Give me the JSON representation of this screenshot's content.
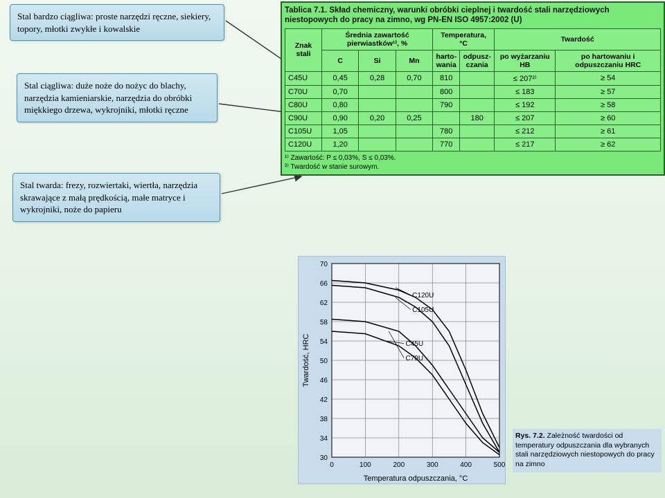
{
  "callouts": {
    "c1": "Stal bardzo ciągliwa: proste narzędzi ręczne, siekiery, topory, młotki zwykłe i kowalskie",
    "c2": "Stal ciągliwa: duże noże do nożyc do blachy, narzędzia kamieniarskie, narzędzia do obróbki miękkiego drzewa, wykrojniki, młotki ręczne",
    "c3": "Stal twarda: frezy, rozwiertaki, wiertła, narzędzia skrawające z małą prędkością, małe matryce i wykrojniki, noże do papieru"
  },
  "table": {
    "caption": "Tablica 7.1. Skład chemiczny, warunki obróbki cieplnej i twardość stali narzędziowych niestopowych do pracy na zimno, wg PN-EN ISO 4957:2002 (U)",
    "headers": {
      "znak": "Znak stali",
      "chem": "Średnia zawartość pierwiastków¹⁾, %",
      "c": "C",
      "si": "Si",
      "mn": "Mn",
      "temp": "Temperatura, °C",
      "hart": "harto-\nwania",
      "odp": "odpusz-\nczania",
      "tw": "Twardość",
      "hb": "po wyżarzaniu HB",
      "hrc": "po hartowaniu i odpuszczaniu HRC"
    },
    "rows": [
      {
        "znak": "C45U",
        "c": "0,45",
        "si": "0,28",
        "mn": "0,70",
        "hart": "810",
        "odp": "",
        "hb": "≤ 207²⁾",
        "hrc": "≥ 54"
      },
      {
        "znak": "C70U",
        "c": "0,70",
        "si": "",
        "mn": "",
        "hart": "800",
        "odp": "",
        "hb": "≤ 183",
        "hrc": "≥ 57"
      },
      {
        "znak": "C80U",
        "c": "0,80",
        "si": "",
        "mn": "",
        "hart": "790",
        "odp": "",
        "hb": "≤ 192",
        "hrc": "≥ 58"
      },
      {
        "znak": "C90U",
        "c": "0,90",
        "si": "0,20",
        "mn": "0,25",
        "hart": "",
        "odp": "180",
        "hb": "≤ 207",
        "hrc": "≥ 60"
      },
      {
        "znak": "C105U",
        "c": "1,05",
        "si": "",
        "mn": "",
        "hart": "780",
        "odp": "",
        "hb": "≤ 212",
        "hrc": "≥ 61"
      },
      {
        "znak": "C120U",
        "c": "1,20",
        "si": "",
        "mn": "",
        "hart": "770",
        "odp": "",
        "hb": "≤ 217",
        "hrc": "≥ 62"
      }
    ],
    "footnotes": {
      "f1": "¹⁾ Zawartość: P ≤ 0,03%, S ≤ 0,03%.",
      "f2": "²⁾ Twardość w stanie surowym."
    }
  },
  "chart": {
    "ylabel": "Twardość, HRC",
    "xlabel": "Temperatura odpuszczania, °C",
    "xlim": [
      0,
      500
    ],
    "xticks": [
      0,
      100,
      200,
      300,
      400,
      500
    ],
    "ylim": [
      30,
      70
    ],
    "yticks": [
      30,
      34,
      38,
      42,
      46,
      50,
      54,
      58,
      62,
      66,
      70
    ],
    "grid_color": "#555",
    "bg": "#f0f4f8",
    "label_fontsize": 11,
    "tick_fontsize": 10,
    "line_color": "#000",
    "line_width": 1.5,
    "series": {
      "C120U": [
        [
          0,
          66.5
        ],
        [
          100,
          66
        ],
        [
          200,
          64.5
        ],
        [
          250,
          63
        ],
        [
          300,
          60.5
        ],
        [
          350,
          56
        ],
        [
          400,
          48
        ],
        [
          450,
          39
        ],
        [
          500,
          32
        ]
      ],
      "C105U": [
        [
          0,
          65.5
        ],
        [
          100,
          65
        ],
        [
          200,
          63
        ],
        [
          250,
          61
        ],
        [
          300,
          58
        ],
        [
          350,
          53
        ],
        [
          400,
          45
        ],
        [
          450,
          37
        ],
        [
          500,
          31
        ]
      ],
      "C45U": [
        [
          0,
          56
        ],
        [
          100,
          55.5
        ],
        [
          200,
          53
        ],
        [
          250,
          50.5
        ],
        [
          300,
          47
        ],
        [
          350,
          42
        ],
        [
          400,
          37
        ],
        [
          450,
          33
        ],
        [
          500,
          30.5
        ]
      ],
      "C70U": [
        [
          0,
          58.5
        ],
        [
          100,
          58
        ],
        [
          200,
          56
        ],
        [
          250,
          53
        ],
        [
          300,
          49
        ],
        [
          350,
          44
        ],
        [
          400,
          39
        ],
        [
          450,
          34
        ],
        [
          500,
          31
        ]
      ]
    },
    "annotations": {
      "upper": "C120U\nC105U",
      "lower": "C45U\nC70U"
    }
  },
  "chart_caption": {
    "bold": "Rys. 7.2.",
    "text": " Zależność twardości od temperatury odpuszczania dla wybranych stali narzędziowych niestopowych do pracy na zimno"
  }
}
